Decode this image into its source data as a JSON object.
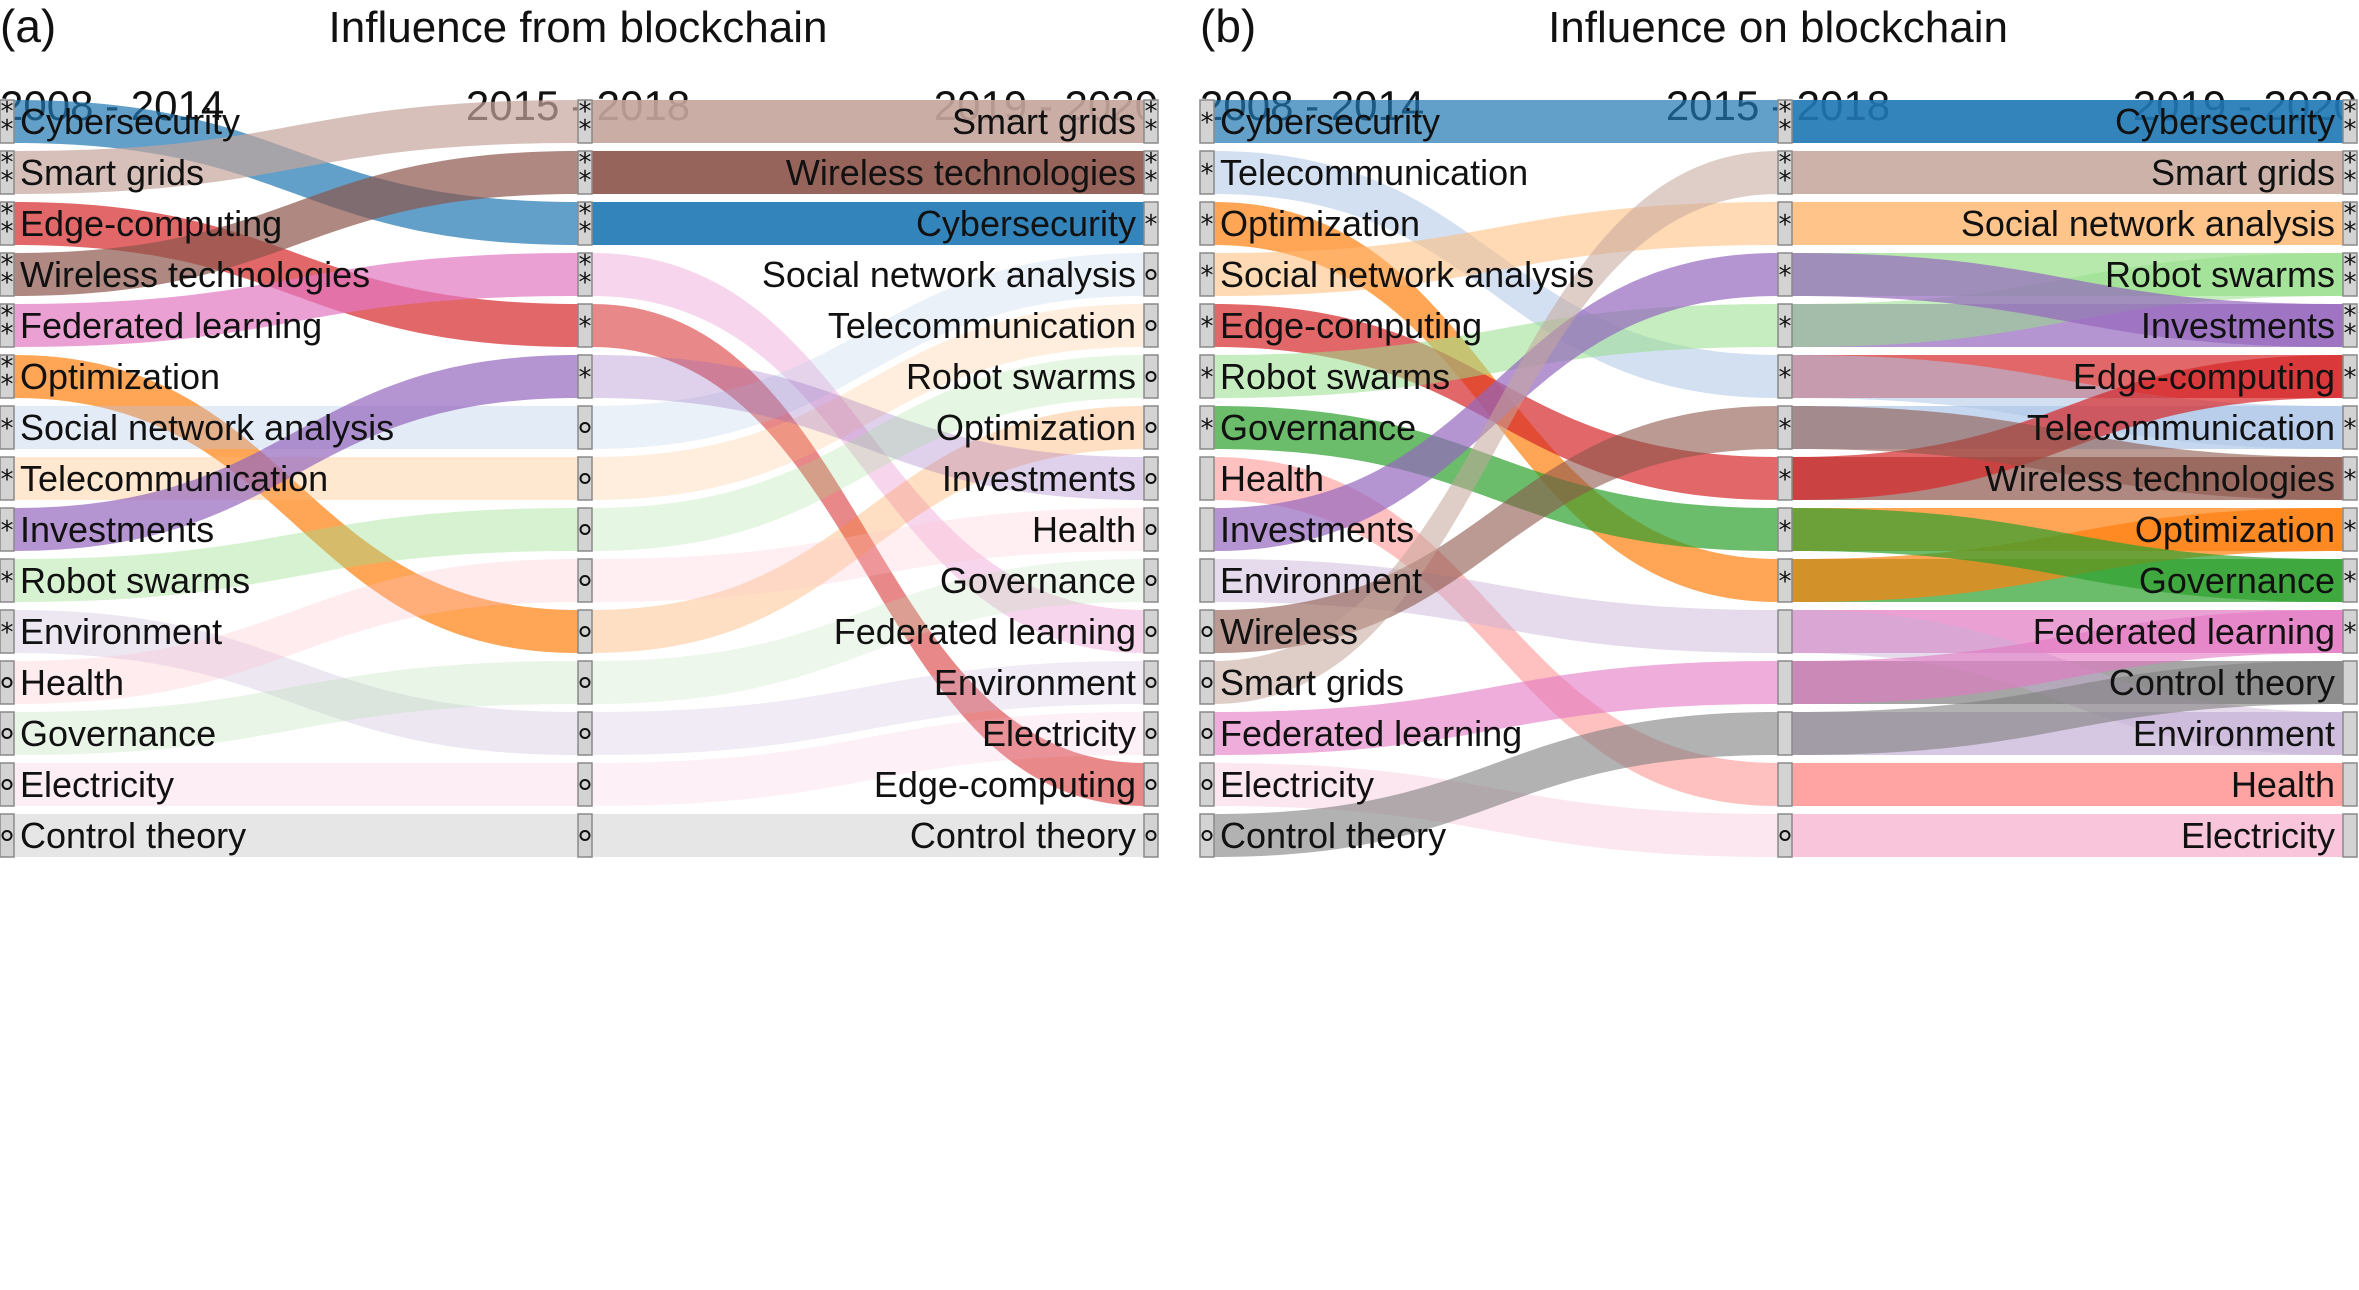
{
  "panels": [
    {
      "id": "a",
      "label": "(a)",
      "title": "Influence from blockchain",
      "periods": [
        "2008 - 2014",
        "2015 - 2018",
        "2019 - 2020"
      ],
      "col_left": [
        {
          "name": "Cybersecurity",
          "mark": "**",
          "color": "#1f77b4"
        },
        {
          "name": "Smart grids",
          "mark": "**",
          "color": "#c5a59b"
        },
        {
          "name": "Edge-computing",
          "mark": "**",
          "color": "#d62728"
        },
        {
          "name": "Wireless technologies",
          "mark": "**",
          "color": "#8c564b"
        },
        {
          "name": "Federated learning",
          "mark": "**",
          "color": "#e377c2"
        },
        {
          "name": "Optimization",
          "mark": "**",
          "color": "#ff7f0e"
        },
        {
          "name": "Social network analysis",
          "mark": "*",
          "color": "#aec7e8"
        },
        {
          "name": "Telecommunication",
          "mark": "*",
          "color": "#ffbb78"
        },
        {
          "name": "Investments",
          "mark": "*",
          "color": "#9467bd"
        },
        {
          "name": "Robot swarms",
          "mark": "*",
          "color": "#98df8a"
        },
        {
          "name": "Environment",
          "mark": "*",
          "color": "#c5b0d5"
        },
        {
          "name": "Health",
          "mark": "o",
          "color": "#ffc0cb"
        },
        {
          "name": "Governance",
          "mark": "o",
          "color": "#b7dfb0"
        },
        {
          "name": "Electricity",
          "mark": "o",
          "color": "#f7b6d2"
        },
        {
          "name": "Control theory",
          "mark": "o",
          "color": "#c7c7c7"
        }
      ],
      "col_mid_marks": [
        "**",
        "**",
        "**",
        "**",
        "*",
        "*",
        "o",
        "o",
        "o",
        "o",
        "o",
        "o",
        "o",
        "o",
        "o"
      ],
      "col_right": [
        {
          "name": "Smart grids",
          "mark": "**",
          "fill": "#c5a59b"
        },
        {
          "name": "Wireless technologies",
          "mark": "**",
          "fill": "#8c564b"
        },
        {
          "name": "Cybersecurity",
          "mark": "*",
          "fill": "#1f77b4"
        },
        {
          "name": "Social network analysis",
          "mark": "o",
          "fill": ""
        },
        {
          "name": "Telecommunication",
          "mark": "o",
          "fill": ""
        },
        {
          "name": "Robot swarms",
          "mark": "o",
          "fill": ""
        },
        {
          "name": "Optimization",
          "mark": "o",
          "fill": ""
        },
        {
          "name": "Investments",
          "mark": "o",
          "fill": ""
        },
        {
          "name": "Health",
          "mark": "o",
          "fill": ""
        },
        {
          "name": "Governance",
          "mark": "o",
          "fill": ""
        },
        {
          "name": "Federated learning",
          "mark": "o",
          "fill": ""
        },
        {
          "name": "Environment",
          "mark": "o",
          "fill": ""
        },
        {
          "name": "Electricity",
          "mark": "o",
          "fill": ""
        },
        {
          "name": "Edge-computing",
          "mark": "o",
          "fill": ""
        },
        {
          "name": "Control theory",
          "mark": "o",
          "fill": ""
        }
      ],
      "flows": [
        {
          "topic": "Cybersecurity",
          "ranks": [
            0,
            2,
            2
          ],
          "opacity": [
            0.7,
            0.7
          ]
        },
        {
          "topic": "Smart grids",
          "ranks": [
            1,
            0,
            0
          ],
          "opacity": [
            0.7,
            0.7
          ]
        },
        {
          "topic": "Edge-computing",
          "ranks": [
            2,
            4,
            13
          ],
          "opacity": [
            0.7,
            0.55
          ]
        },
        {
          "topic": "Wireless technologies",
          "ranks": [
            3,
            1,
            1
          ],
          "opacity": [
            0.7,
            0.7
          ]
        },
        {
          "topic": "Federated learning",
          "ranks": [
            4,
            3,
            10
          ],
          "opacity": [
            0.7,
            0.3
          ]
        },
        {
          "topic": "Optimization",
          "ranks": [
            5,
            10,
            6
          ],
          "opacity": [
            0.7,
            0.25
          ]
        },
        {
          "topic": "Social network analysis",
          "ranks": [
            6,
            6,
            3
          ],
          "opacity": [
            0.35,
            0.25
          ]
        },
        {
          "topic": "Telecommunication",
          "ranks": [
            7,
            7,
            4
          ],
          "opacity": [
            0.35,
            0.25
          ]
        },
        {
          "topic": "Investments",
          "ranks": [
            8,
            5,
            7
          ],
          "opacity": [
            0.7,
            0.3
          ]
        },
        {
          "topic": "Robot swarms",
          "ranks": [
            9,
            8,
            5
          ],
          "opacity": [
            0.4,
            0.25
          ]
        },
        {
          "topic": "Environment",
          "ranks": [
            10,
            12,
            11
          ],
          "opacity": [
            0.3,
            0.25
          ]
        },
        {
          "topic": "Health",
          "ranks": [
            11,
            9,
            8
          ],
          "opacity": [
            0.3,
            0.25
          ]
        },
        {
          "topic": "Governance",
          "ranks": [
            12,
            11,
            9
          ],
          "opacity": [
            0.3,
            0.25
          ]
        },
        {
          "topic": "Electricity",
          "ranks": [
            13,
            13,
            12
          ],
          "opacity": [
            0.25,
            0.2
          ]
        },
        {
          "topic": "Control theory",
          "ranks": [
            14,
            14,
            14
          ],
          "opacity": [
            0.45,
            0.45
          ]
        }
      ]
    },
    {
      "id": "b",
      "label": "(b)",
      "title": "Influence on blockchain",
      "periods": [
        "2008 - 2014",
        "2015 - 2018",
        "2019 - 2020"
      ],
      "col_left": [
        {
          "name": "Cybersecurity",
          "mark": "*",
          "color": "#1f77b4"
        },
        {
          "name": "Telecommunication",
          "mark": "*",
          "color": "#aec7e8"
        },
        {
          "name": "Optimization",
          "mark": "*",
          "color": "#ff7f0e"
        },
        {
          "name": "Social network analysis",
          "mark": "*",
          "color": "#ffbb78"
        },
        {
          "name": "Edge-computing",
          "mark": "*",
          "color": "#d62728"
        },
        {
          "name": "Robot swarms",
          "mark": "*",
          "color": "#98df8a"
        },
        {
          "name": "Governance",
          "mark": "*",
          "color": "#2ca02c"
        },
        {
          "name": "Health",
          "mark": "",
          "color": "#ff9896"
        },
        {
          "name": "Investments",
          "mark": "",
          "color": "#9467bd"
        },
        {
          "name": "Environment",
          "mark": "",
          "color": "#c5b0d5"
        },
        {
          "name": "Wireless",
          "mark": "o",
          "color": "#8c564b"
        },
        {
          "name": "Smart grids",
          "mark": "o",
          "color": "#c5a59b"
        },
        {
          "name": "Federated learning",
          "mark": "o",
          "color": "#e377c2"
        },
        {
          "name": "Electricity",
          "mark": "o",
          "color": "#f7b6d2"
        },
        {
          "name": "Control theory",
          "mark": "o",
          "color": "#7f7f7f"
        }
      ],
      "col_mid_marks": [
        "**",
        "**",
        "*",
        "*",
        "*",
        "*",
        "*",
        "*",
        "*",
        "*",
        "",
        "",
        "",
        "",
        "o"
      ],
      "col_right": [
        {
          "name": "Cybersecurity",
          "mark": "**",
          "fill": "#1f77b4"
        },
        {
          "name": "Smart grids",
          "mark": "**",
          "fill": "#c5a59b"
        },
        {
          "name": "Social network analysis",
          "mark": "**",
          "fill": "#ffbb78"
        },
        {
          "name": "Robot swarms",
          "mark": "**",
          "fill": "#98df8a"
        },
        {
          "name": "Investments",
          "mark": "**",
          "fill": "#9467bd"
        },
        {
          "name": "Edge-computing",
          "mark": "*",
          "fill": "#d62728"
        },
        {
          "name": "Telecommunication",
          "mark": "*",
          "fill": "#aec7e8"
        },
        {
          "name": "Wireless technologies",
          "mark": "*",
          "fill": "#8c564b"
        },
        {
          "name": "Optimization",
          "mark": "*",
          "fill": "#ff7f0e"
        },
        {
          "name": "Governance",
          "mark": "*",
          "fill": "#2ca02c"
        },
        {
          "name": "Federated learning",
          "mark": "*",
          "fill": "#e377c2"
        },
        {
          "name": "Control theory",
          "mark": "",
          "fill": "#7f7f7f"
        },
        {
          "name": "Environment",
          "mark": "",
          "fill": "#c5b0d5"
        },
        {
          "name": "Health",
          "mark": "",
          "fill": "#ff9896"
        },
        {
          "name": "Electricity",
          "mark": "",
          "fill": "#f7b6d2"
        }
      ],
      "flows": [
        {
          "topic": "Cybersecurity",
          "ranks": [
            0,
            0,
            0
          ],
          "opacity": [
            0.7,
            0.7
          ]
        },
        {
          "topic": "Telecommunication",
          "ranks": [
            1,
            5,
            6
          ],
          "opacity": [
            0.55,
            0.55
          ]
        },
        {
          "topic": "Optimization",
          "ranks": [
            2,
            9,
            8
          ],
          "opacity": [
            0.7,
            0.7
          ]
        },
        {
          "topic": "Social network analysis",
          "ranks": [
            3,
            2,
            2
          ],
          "opacity": [
            0.55,
            0.55
          ]
        },
        {
          "topic": "Edge-computing",
          "ranks": [
            4,
            7,
            5
          ],
          "opacity": [
            0.7,
            0.7
          ]
        },
        {
          "topic": "Robot swarms",
          "ranks": [
            5,
            4,
            3
          ],
          "opacity": [
            0.55,
            0.55
          ]
        },
        {
          "topic": "Governance",
          "ranks": [
            6,
            8,
            9
          ],
          "opacity": [
            0.7,
            0.7
          ]
        },
        {
          "topic": "Health",
          "ranks": [
            7,
            13,
            13
          ],
          "opacity": [
            0.6,
            0.6
          ]
        },
        {
          "topic": "Investments",
          "ranks": [
            8,
            3,
            4
          ],
          "opacity": [
            0.7,
            0.7
          ]
        },
        {
          "topic": "Environment",
          "ranks": [
            9,
            10,
            12
          ],
          "opacity": [
            0.45,
            0.45
          ]
        },
        {
          "topic": "Wireless",
          "ranks": [
            10,
            6,
            7
          ],
          "opacity": [
            0.6,
            0.6
          ]
        },
        {
          "topic": "Smart grids",
          "ranks": [
            11,
            1,
            1
          ],
          "opacity": [
            0.55,
            0.55
          ]
        },
        {
          "topic": "Federated learning",
          "ranks": [
            12,
            11,
            10
          ],
          "opacity": [
            0.6,
            0.6
          ]
        },
        {
          "topic": "Electricity",
          "ranks": [
            13,
            14,
            14
          ],
          "opacity": [
            0.35,
            0.35
          ]
        },
        {
          "topic": "Control theory",
          "ranks": [
            14,
            12,
            11
          ],
          "opacity": [
            0.6,
            0.6
          ]
        }
      ]
    }
  ]
}
